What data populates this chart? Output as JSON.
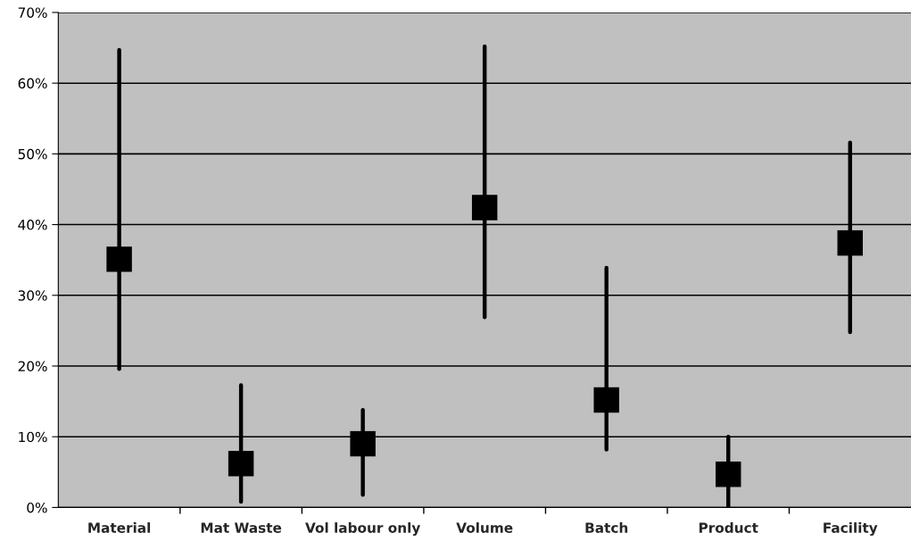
{
  "chart_data": {
    "type": "scatter",
    "marker": "square",
    "grid": "y",
    "categories": [
      "Material",
      "Mat Waste",
      "Vol labour only",
      "Volume",
      "Batch",
      "Product",
      "Facility"
    ],
    "values": [
      35.1,
      6.2,
      9.0,
      42.4,
      15.2,
      4.7,
      37.4
    ],
    "errors": [
      [
        19.6,
        64.7
      ],
      [
        0.8,
        17.3
      ],
      [
        1.8,
        13.8
      ],
      [
        26.9,
        65.2
      ],
      [
        8.2,
        33.9
      ],
      [
        0,
        10.0
      ],
      [
        24.8,
        51.6
      ]
    ],
    "color": "#000000",
    "ylim": [
      0,
      70
    ],
    "yticks": [
      {
        "value": 0,
        "label": "0%"
      },
      {
        "value": 10,
        "label": "10%"
      },
      {
        "value": 20,
        "label": "20%"
      },
      {
        "value": 30,
        "label": "30%"
      },
      {
        "value": 40,
        "label": "40%"
      },
      {
        "value": 50,
        "label": "50%"
      },
      {
        "value": 60,
        "label": "60%"
      },
      {
        "value": 70,
        "label": "70%"
      }
    ]
  }
}
